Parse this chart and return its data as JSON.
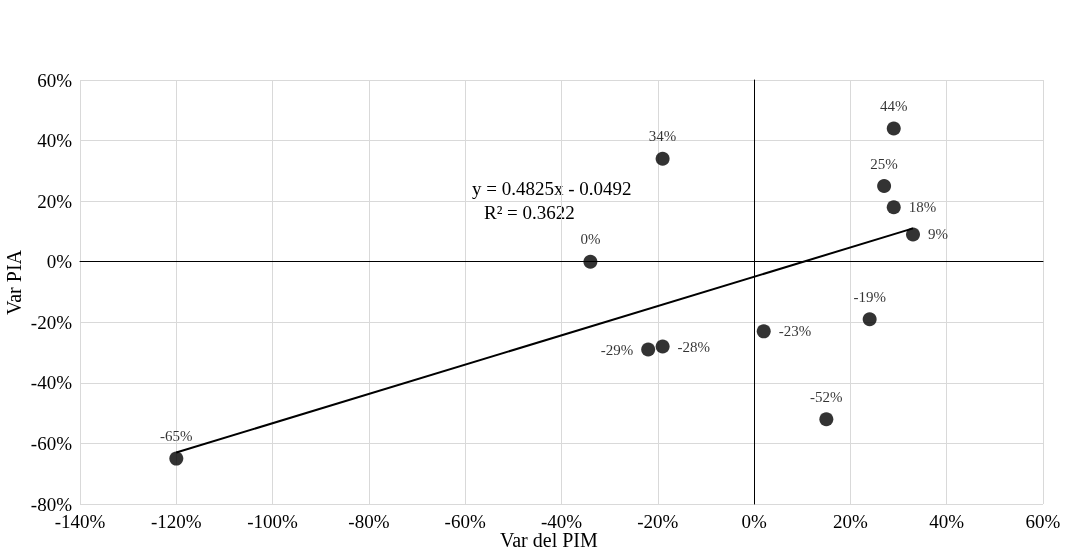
{
  "chart_data": {
    "type": "scatter",
    "xlabel": "Var del PIM",
    "ylabel": "Var PIA",
    "xlim": [
      -140,
      60
    ],
    "ylim": [
      -80,
      60
    ],
    "xticks": [
      {
        "value": -140,
        "label": "-140%"
      },
      {
        "value": -120,
        "label": "-120%"
      },
      {
        "value": -100,
        "label": "-100%"
      },
      {
        "value": -80,
        "label": "-80%"
      },
      {
        "value": -60,
        "label": "-60%"
      },
      {
        "value": -40,
        "label": "-40%"
      },
      {
        "value": -20,
        "label": "-20%"
      },
      {
        "value": 0,
        "label": "0%"
      },
      {
        "value": 20,
        "label": "20%"
      },
      {
        "value": 40,
        "label": "40%"
      },
      {
        "value": 60,
        "label": "60%"
      }
    ],
    "yticks": [
      {
        "value": -80,
        "label": "-80%"
      },
      {
        "value": -60,
        "label": "-60%"
      },
      {
        "value": -40,
        "label": "-40%"
      },
      {
        "value": -20,
        "label": "-20%"
      },
      {
        "value": 0,
        "label": "0%"
      },
      {
        "value": 20,
        "label": "20%"
      },
      {
        "value": 40,
        "label": "40%"
      },
      {
        "value": 60,
        "label": "60%"
      }
    ],
    "grid": true,
    "annotations": [
      "y = 0.4825x - 0.0492",
      "R² = 0.3622"
    ],
    "series": [
      {
        "type": "scatter",
        "color": "#000000",
        "marker": "circle",
        "x": [
          -120,
          -34,
          -19,
          -22,
          -19,
          2,
          15,
          24,
          27,
          29,
          33,
          29
        ],
        "values": [
          -65,
          0,
          34,
          -29,
          -28,
          -23,
          -52,
          -19,
          25,
          18,
          9,
          44
        ],
        "value_labels": [
          "-65%",
          "0%",
          "34%",
          "-29%",
          "-28%",
          "-23%",
          "-52%",
          "-19%",
          "25%",
          "18%",
          "9%",
          "44%"
        ]
      },
      {
        "type": "line",
        "color": "#000000",
        "marker": "none",
        "line_style": "solid",
        "x": [
          -120,
          33
        ],
        "values": [
          -63,
          11
        ]
      }
    ]
  }
}
